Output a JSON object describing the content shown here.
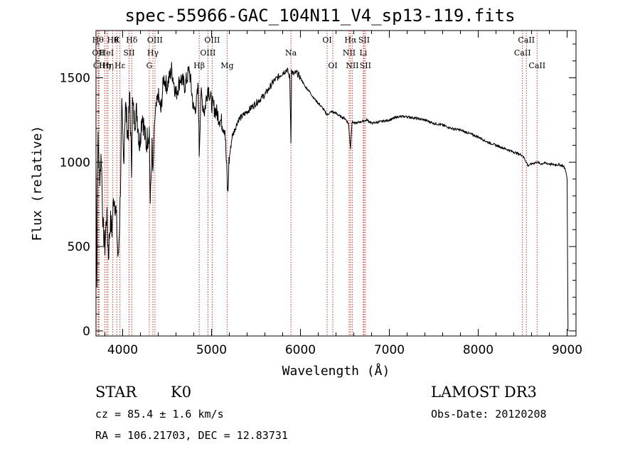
{
  "chart_data": {
    "type": "line",
    "title": "spec-55966-GAC_104N11_V4_sp13-119.fits",
    "xlabel": "Wavelength (Å)",
    "ylabel": "Flux (relative)",
    "xlim": [
      3700,
      9100
    ],
    "ylim": [
      -30,
      1780
    ],
    "xticks": [
      4000,
      5000,
      6000,
      7000,
      8000,
      9000
    ],
    "xtick_labels": [
      "4000",
      "5000",
      "6000",
      "7000",
      "8000",
      "9000"
    ],
    "yticks": [
      0,
      500,
      1000,
      1500
    ],
    "ytick_labels": [
      "0",
      "500",
      "1000",
      "1500"
    ],
    "series": [
      {
        "x": [
          3700,
          3710,
          3720,
          3730,
          3740,
          3760,
          3780,
          3800,
          3820,
          3840,
          3860,
          3880,
          3900,
          3920,
          3935,
          3950,
          3970,
          3990,
          4010,
          4030,
          4060,
          4080,
          4100,
          4110,
          4130,
          4160,
          4190,
          4220,
          4260,
          4300,
          4310,
          4330,
          4340,
          4360,
          4400,
          4430,
          4460,
          4500,
          4550,
          4600,
          4650,
          4700,
          4750,
          4800,
          4830,
          4850,
          4861,
          4880,
          4920,
          4960,
          5000,
          5050,
          5100,
          5150,
          5175,
          5184,
          5195,
          5230,
          5300,
          5400,
          5500,
          5600,
          5700,
          5800,
          5850,
          5880,
          5893,
          5900,
          5920,
          5960,
          6000,
          6050,
          6100,
          6150,
          6200,
          6250,
          6300,
          6350,
          6400,
          6450,
          6500,
          6540,
          6563,
          6580,
          6620,
          6680,
          6750,
          6800,
          6900,
          7000,
          7100,
          7200,
          7300,
          7400,
          7500,
          7600,
          7700,
          7800,
          7900,
          8000,
          8100,
          8200,
          8300,
          8400,
          8500,
          8542,
          8560,
          8600,
          8662,
          8700,
          8750,
          8800,
          8850,
          8900,
          8950,
          8980,
          9000,
          9010
        ],
        "y": [
          1000,
          300,
          1150,
          1050,
          900,
          1050,
          600,
          500,
          700,
          450,
          650,
          600,
          800,
          750,
          600,
          400,
          750,
          1300,
          1000,
          1350,
          1150,
          1400,
          950,
          1350,
          1250,
          1300,
          1100,
          1300,
          1100,
          1200,
          750,
          1100,
          900,
          1250,
          1400,
          1300,
          1500,
          1450,
          1550,
          1400,
          1500,
          1450,
          1550,
          1300,
          1350,
          1450,
          1050,
          1400,
          1300,
          1450,
          1350,
          1300,
          1250,
          1200,
          900,
          800,
          1000,
          1150,
          1250,
          1300,
          1350,
          1400,
          1480,
          1530,
          1550,
          1500,
          1130,
          1540,
          1520,
          1530,
          1500,
          1450,
          1420,
          1380,
          1350,
          1320,
          1280,
          1300,
          1290,
          1270,
          1260,
          1230,
          1080,
          1240,
          1230,
          1240,
          1250,
          1230,
          1240,
          1250,
          1270,
          1270,
          1260,
          1250,
          1230,
          1220,
          1200,
          1190,
          1170,
          1150,
          1120,
          1100,
          1080,
          1060,
          1040,
          1000,
          980,
          990,
          1000,
          990,
          995,
          990,
          985,
          985,
          980,
          960,
          900,
          0
        ]
      }
    ],
    "lines": [
      {
        "x": 3722,
        "label": "Hθ",
        "row": 1
      },
      {
        "x": 3727,
        "label": "OII",
        "row": 2
      },
      {
        "x": 3735,
        "label": "CII",
        "row": 3
      },
      {
        "x": 3798,
        "label": "Hη",
        "row": 3
      },
      {
        "x": 3820,
        "label": "HeI",
        "row": 2
      },
      {
        "x": 3835,
        "label": "Hη",
        "row": 3
      },
      {
        "x": 3889,
        "label": "Hθ",
        "row": 1
      },
      {
        "x": 3934,
        "label": "K",
        "row": 1
      },
      {
        "x": 3969,
        "label": "Hε",
        "row": 3
      },
      {
        "x": 4102,
        "label": "Hδ",
        "row": 1
      },
      {
        "x": 4072,
        "label": "SII",
        "row": 2
      },
      {
        "x": 4300,
        "label": "G",
        "row": 3
      },
      {
        "x": 4340,
        "label": "Hγ",
        "row": 2
      },
      {
        "x": 4363,
        "label": "OIII",
        "row": 1
      },
      {
        "x": 4861,
        "label": "Hβ",
        "row": 3
      },
      {
        "x": 4959,
        "label": "OIII",
        "row": 2
      },
      {
        "x": 5007,
        "label": "OIII",
        "row": 1
      },
      {
        "x": 5175,
        "label": "Mg",
        "row": 3
      },
      {
        "x": 5893,
        "label": "Na",
        "row": 2
      },
      {
        "x": 6300,
        "label": "OI",
        "row": 1
      },
      {
        "x": 6364,
        "label": "OI",
        "row": 3
      },
      {
        "x": 6548,
        "label": "NII",
        "row": 2
      },
      {
        "x": 6563,
        "label": "Hα",
        "row": 1
      },
      {
        "x": 6583,
        "label": "NII",
        "row": 3
      },
      {
        "x": 6707,
        "label": "Li",
        "row": 2
      },
      {
        "x": 6716,
        "label": "SII",
        "row": 1
      },
      {
        "x": 6731,
        "label": "SII",
        "row": 3
      },
      {
        "x": 8498,
        "label": "CaII",
        "row": 2
      },
      {
        "x": 8542,
        "label": "CaII",
        "row": 1
      },
      {
        "x": 8662,
        "label": "CaII",
        "row": 3
      }
    ],
    "grid": false,
    "legend": "none"
  },
  "info": {
    "class_label": "STAR",
    "subclass": "K0",
    "cz": "cz = 85.4 ± 1.6 km/s",
    "coords": "RA = 106.21703, DEC =  12.83731",
    "survey": "LAMOST DR3",
    "obs_date": "Obs-Date: 20120208"
  }
}
